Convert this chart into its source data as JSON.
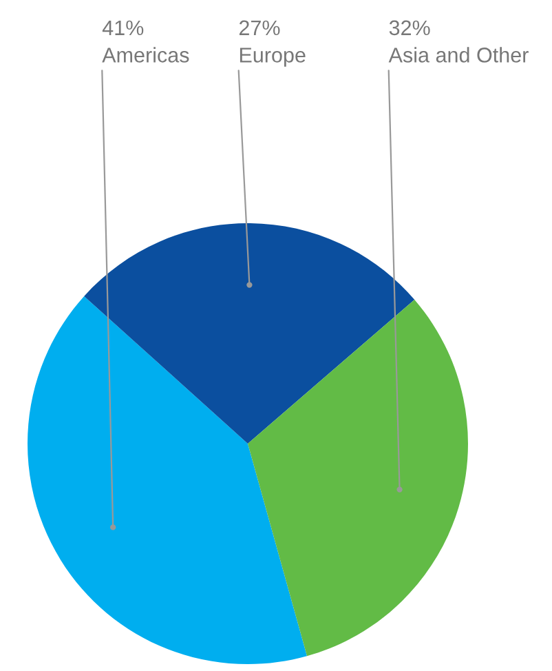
{
  "chart_data": {
    "type": "pie",
    "categories": [
      "Americas",
      "Europe",
      "Asia and Other"
    ],
    "values": [
      41,
      27,
      32
    ],
    "colors": [
      "#00aeef",
      "#0b4f9f",
      "#62bb46"
    ],
    "value_labels": [
      "41%",
      "27%",
      "32%"
    ],
    "legend": false
  }
}
